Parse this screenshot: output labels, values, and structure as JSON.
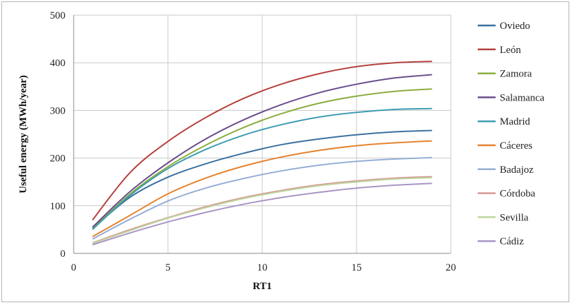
{
  "chart_data": {
    "type": "line",
    "title": "",
    "xlabel": "RT1",
    "ylabel": "Useful energy (MWh/year)",
    "xlim": [
      0,
      20
    ],
    "ylim": [
      0,
      500
    ],
    "xticks": [
      "0",
      "5",
      "10",
      "15",
      "20"
    ],
    "yticks": [
      "0",
      "100",
      "200",
      "300",
      "400",
      "500"
    ],
    "grid": true,
    "legend_position": "right",
    "x": [
      1,
      3,
      5,
      7,
      9,
      11,
      13,
      15,
      17,
      19
    ],
    "series": [
      {
        "name": "Oviedo",
        "color": "#3a6f9f",
        "values": [
          52,
          118,
          160,
          188,
          210,
          228,
          240,
          249,
          255,
          258
        ]
      },
      {
        "name": "León",
        "color": "#b5403c",
        "values": [
          70,
          170,
          235,
          285,
          325,
          355,
          377,
          392,
          400,
          403
        ]
      },
      {
        "name": "Zamora",
        "color": "#8aad3f",
        "values": [
          52,
          125,
          182,
          227,
          264,
          293,
          315,
          330,
          340,
          345
        ]
      },
      {
        "name": "Salamanca",
        "color": "#6a4c8c",
        "values": [
          55,
          130,
          190,
          240,
          280,
          312,
          337,
          355,
          368,
          375
        ]
      },
      {
        "name": "Madrid",
        "color": "#3c9cb2",
        "values": [
          50,
          122,
          178,
          218,
          248,
          270,
          286,
          296,
          302,
          304
        ]
      },
      {
        "name": "Cáceres",
        "color": "#e5822d",
        "values": [
          35,
          80,
          125,
          158,
          183,
          202,
          216,
          226,
          232,
          236
        ]
      },
      {
        "name": "Badajoz",
        "color": "#94aed6",
        "values": [
          30,
          72,
          110,
          137,
          157,
          173,
          185,
          193,
          198,
          201
        ]
      },
      {
        "name": "Córdoba",
        "color": "#d89795",
        "values": [
          22,
          50,
          75,
          98,
          117,
          132,
          144,
          152,
          158,
          161
        ]
      },
      {
        "name": "Sevilla",
        "color": "#bdd59d",
        "values": [
          21,
          48,
          74,
          96,
          115,
          130,
          142,
          150,
          156,
          159
        ]
      },
      {
        "name": "Cádiz",
        "color": "#a894c6",
        "values": [
          18,
          43,
          66,
          86,
          103,
          117,
          128,
          137,
          143,
          147
        ]
      }
    ]
  }
}
